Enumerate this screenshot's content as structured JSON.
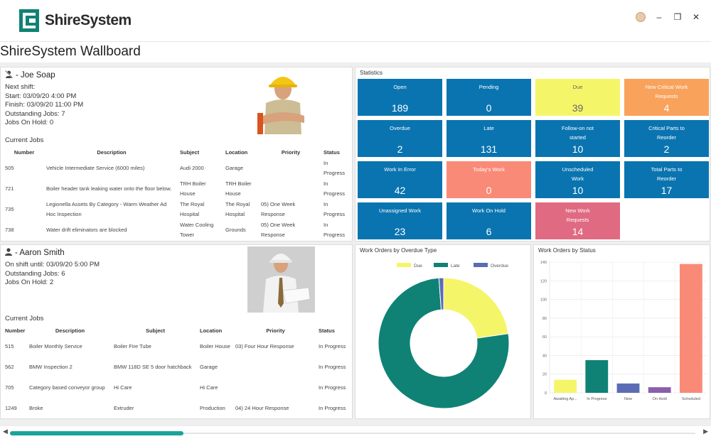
{
  "app": {
    "name": "ShireSystem"
  },
  "page": {
    "title": "ShireSystem Wallboard"
  },
  "employees": [
    {
      "name": "- Joe Soap",
      "icon": "user-slash-icon",
      "info": [
        "Next shift:",
        "Start: 03/09/20 4:00 PM",
        "Finish: 03/09/20 11:00 PM",
        "Outstanding Jobs: 7",
        "Jobs On Hold: 0"
      ],
      "jobs_label": "Current Jobs",
      "columns": [
        "Number",
        "Description",
        "Subject",
        "Location",
        "Priority",
        "Status"
      ],
      "rows": [
        [
          "505",
          "Vehicle Intermediate Service (6000 miles)",
          "Audi 2000",
          "Garage",
          "",
          "In Progress"
        ],
        [
          "721",
          "Boiler header tank leaking water onto the floor below.",
          "TRH Boiler House",
          "TRH Boiler House",
          "",
          "In Progress"
        ],
        [
          "735",
          "Legionella Assets By Category - Warm Weather Ad Hoc Inspection",
          "The Royal Hospital",
          "The Royal Hospital",
          "05) One Week Response",
          "In Progress"
        ],
        [
          "738",
          "Water drift eliminators are blocked",
          "Water Cooling Tower",
          "Grounds",
          "05) One Week Response",
          "In Progress"
        ]
      ]
    },
    {
      "name": "- Aaron Smith",
      "icon": "user-icon",
      "info": [
        "On shift until: 03/09/20 5:00 PM",
        "Outstanding Jobs: 6",
        "Jobs On Hold: 2"
      ],
      "jobs_label": "Current Jobs",
      "columns": [
        "Number",
        "Description",
        "Subject",
        "Location",
        "Priority",
        "Status"
      ],
      "rows": [
        [
          "515",
          "Boiler Monthly Service",
          "Boiler Fire Tube",
          "Boiler House",
          "03) Four Hour Response",
          "In Progress"
        ],
        [
          "562",
          "BMW Inspection 2",
          "BMW 118D SE 5 door hatchback",
          "Garage",
          "",
          "In Progress"
        ],
        [
          "705",
          "Category based conveyor group",
          "Hi Care",
          "Hi Care",
          "",
          "In Progress"
        ],
        [
          "1249",
          "Broke",
          "Extruder",
          "Production",
          "04) 24 Hour Response",
          "In Progress"
        ]
      ]
    }
  ],
  "statistics": {
    "label": "Statistics",
    "tiles": [
      {
        "label": "Open",
        "value": "189",
        "color": "#0a74b0"
      },
      {
        "label": "Pending",
        "value": "0",
        "color": "#0a74b0"
      },
      {
        "label": "Due",
        "value": "39",
        "color": "#f5f56a",
        "text": "#666666"
      },
      {
        "label": "New Critical Work Requests",
        "value": "4",
        "color": "#f9a25c"
      },
      {
        "label": "Overdue",
        "value": "2",
        "color": "#0a74b0"
      },
      {
        "label": "Late",
        "value": "131",
        "color": "#0a74b0"
      },
      {
        "label": "Follow-on not started",
        "value": "10",
        "color": "#0a74b0"
      },
      {
        "label": "Critical Parts to Reorder",
        "value": "2",
        "color": "#0a74b0"
      },
      {
        "label": "Work In Error",
        "value": "42",
        "color": "#0a74b0"
      },
      {
        "label": "Today's Work",
        "value": "0",
        "color": "#fa8a78"
      },
      {
        "label": "Unscheduled Work",
        "value": "10",
        "color": "#0a74b0"
      },
      {
        "label": "Total Parts to Reorder",
        "value": "17",
        "color": "#0a74b0"
      },
      {
        "label": "Unassigned Work",
        "value": "23",
        "color": "#0a74b0"
      },
      {
        "label": "Work On Hold",
        "value": "6",
        "color": "#0a74b0"
      },
      {
        "label": "New Work Requests",
        "value": "14",
        "color": "#e06a82"
      }
    ]
  },
  "chart_data": [
    {
      "type": "pie",
      "title": "Work Orders by Overdue Type",
      "legend_position": "top",
      "categories": [
        "Due",
        "Late",
        "Overdue"
      ],
      "values": [
        39,
        131,
        2
      ],
      "colors": [
        "#f5f56a",
        "#0f8275",
        "#5b6cb5"
      ]
    },
    {
      "type": "bar",
      "title": "Work Orders by Status",
      "categories": [
        "Awaiting Ap...",
        "In Progress",
        "New",
        "On Hold",
        "Scheduled"
      ],
      "values": [
        14,
        35,
        10,
        6,
        138
      ],
      "colors": [
        "#f5f56a",
        "#0f8275",
        "#5b6cb5",
        "#8a5fae",
        "#fa8a78"
      ],
      "ylim": [
        0,
        140
      ],
      "yticks": [
        "0",
        "20",
        "40",
        "60",
        "80",
        "100",
        "120",
        "140"
      ],
      "grid": true
    }
  ]
}
